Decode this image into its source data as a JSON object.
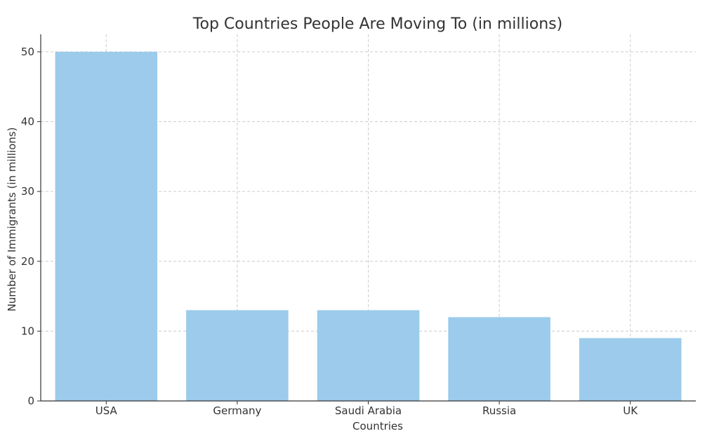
{
  "chart_data": {
    "type": "bar",
    "title": "Top Countries People Are Moving To (in millions)",
    "xlabel": "Countries",
    "ylabel": "Number of Immigrants (in millions)",
    "categories": [
      "USA",
      "Germany",
      "Saudi Arabia",
      "Russia",
      "UK"
    ],
    "values": [
      50,
      13,
      13,
      12,
      9
    ],
    "ylim": [
      0,
      52.5
    ],
    "yticks": [
      0,
      10,
      20,
      30,
      40,
      50
    ],
    "grid": true,
    "bar_color": "#9ccbeb"
  }
}
